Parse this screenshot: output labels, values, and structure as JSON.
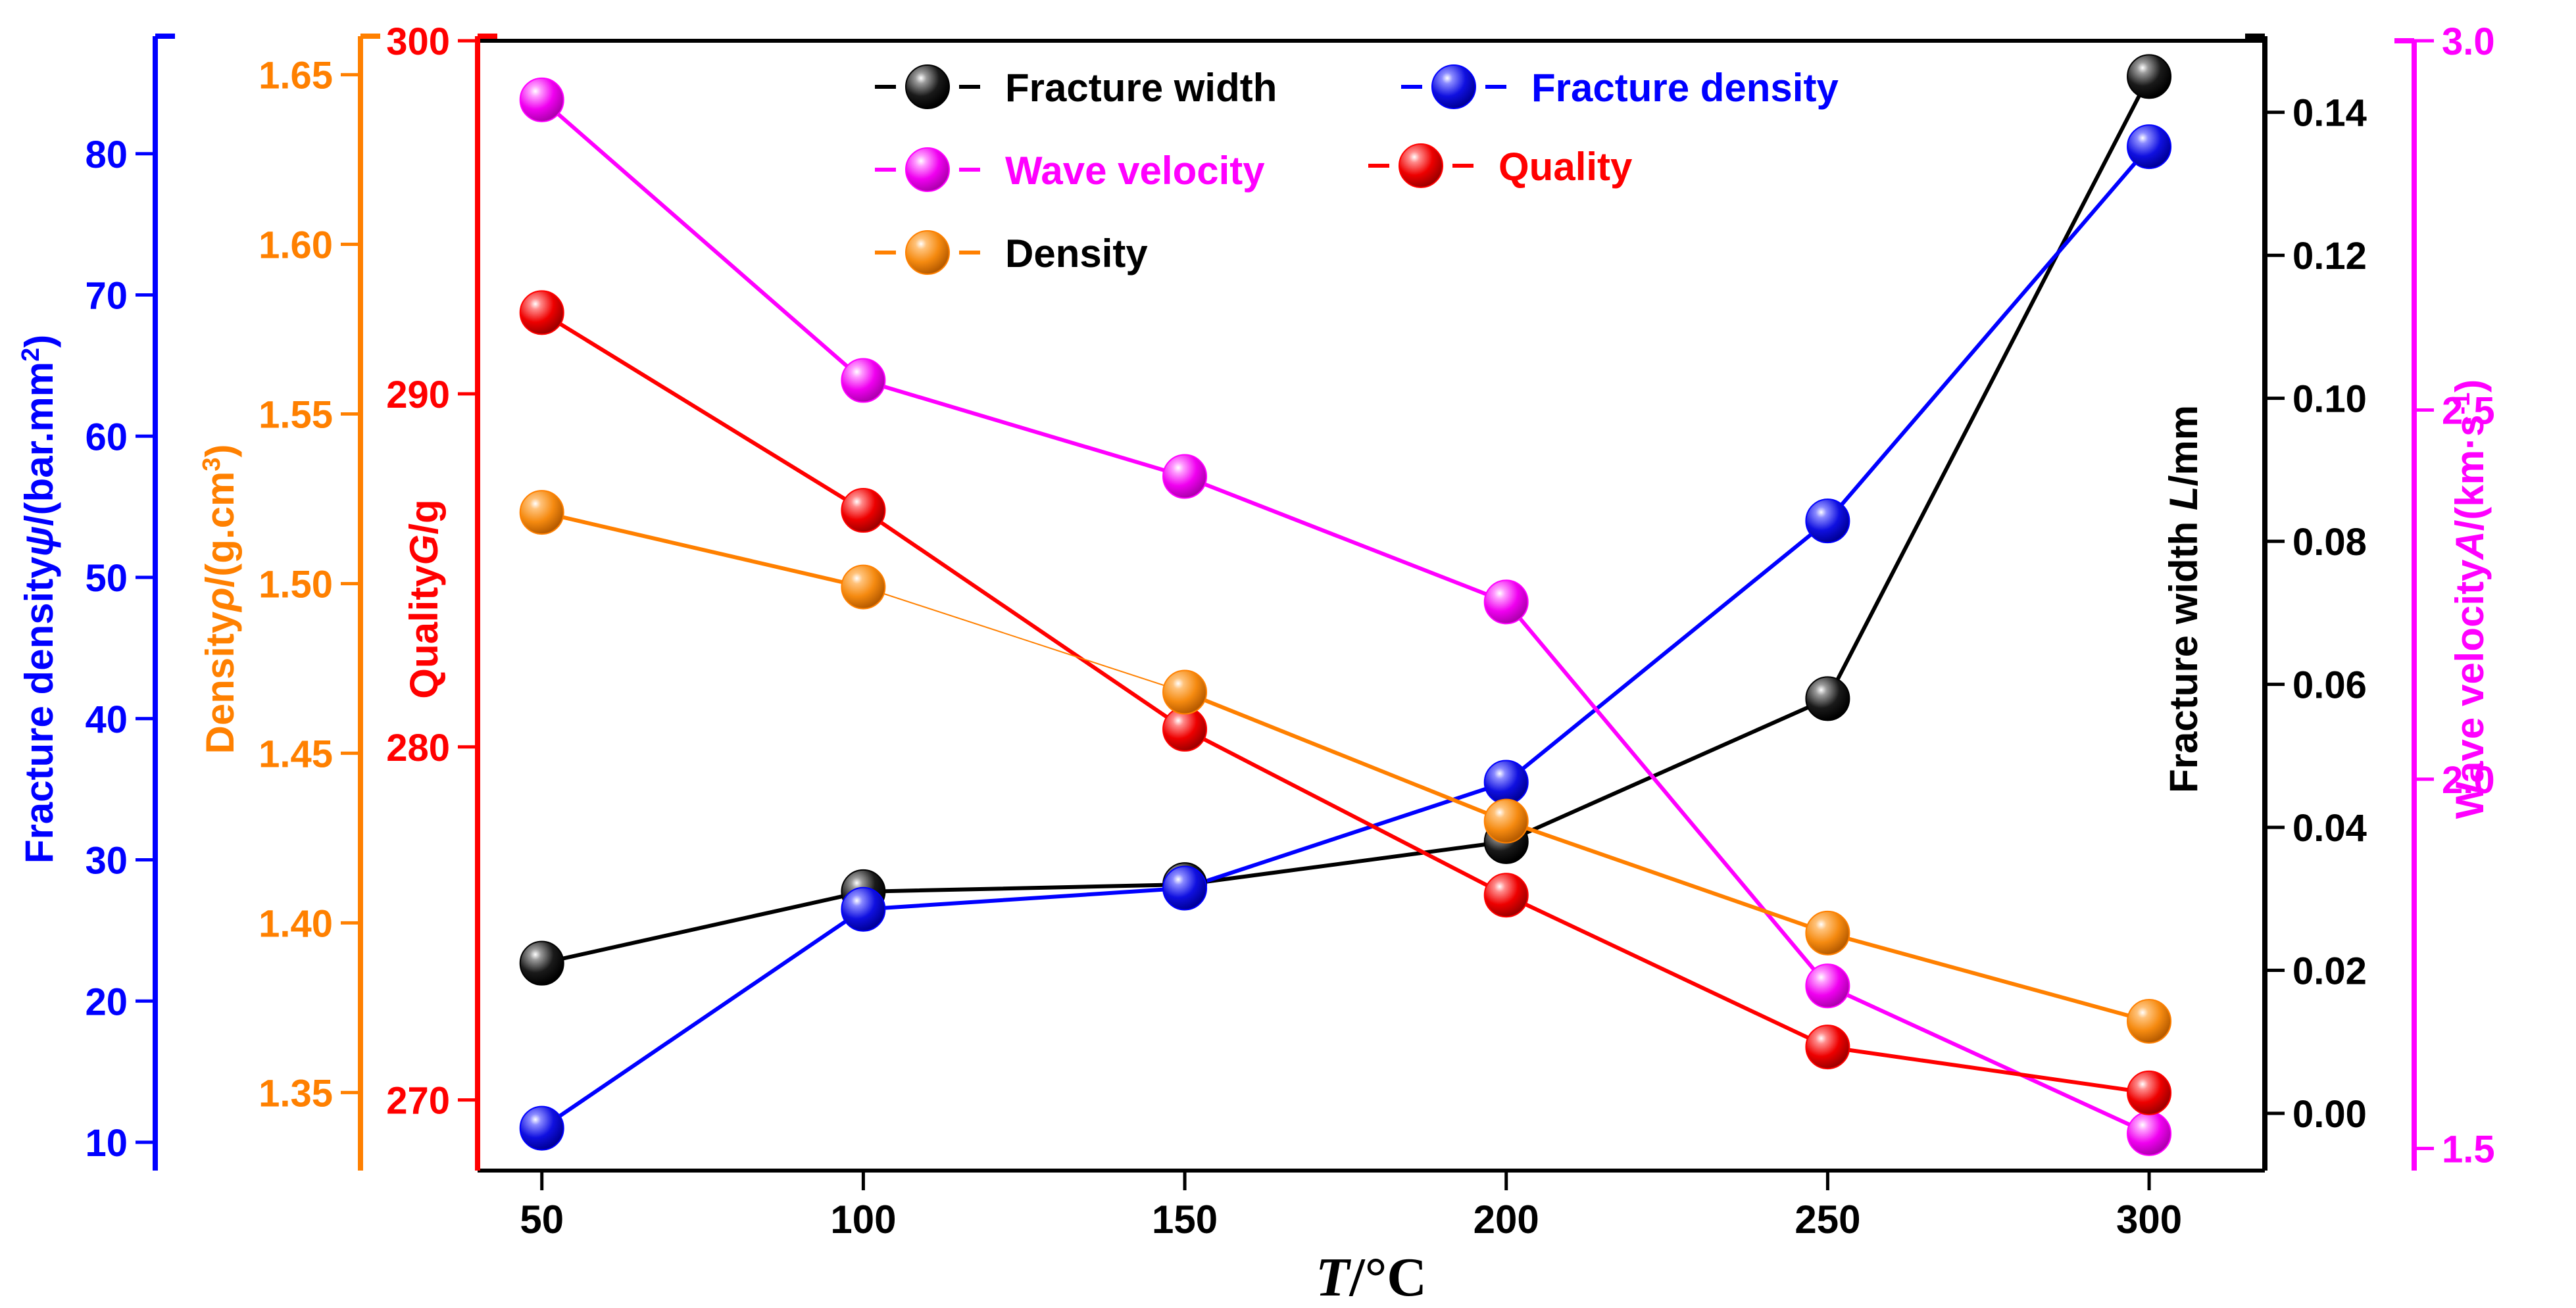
{
  "chart_data": {
    "type": "line",
    "x": [
      50,
      100,
      150,
      200,
      250,
      300
    ],
    "xlabel_italic": "T",
    "xlabel_rest": "/°C",
    "x_ticks": [
      "50",
      "100",
      "150",
      "200",
      "250",
      "300"
    ],
    "xlim": [
      40,
      318
    ],
    "series": [
      {
        "key": "fracture_width",
        "name": "Fracture width",
        "color": "#000000",
        "axis": "width",
        "values": [
          0.021,
          0.031,
          0.032,
          0.038,
          0.058,
          0.145
        ]
      },
      {
        "key": "fracture_density",
        "name": "Fracture density",
        "color": "#0000ff",
        "axis": "fdensity",
        "values": [
          11.0,
          26.5,
          28.0,
          35.5,
          54.0,
          80.5
        ]
      },
      {
        "key": "wave_velocity",
        "name": "Wave velocity",
        "color": "#ff00ff",
        "axis": "velocity",
        "values": [
          2.92,
          2.54,
          2.41,
          2.24,
          1.72,
          1.52
        ]
      },
      {
        "key": "quality",
        "name": "Quality",
        "color": "#ff0000",
        "axis": "quality",
        "values": [
          292.3,
          286.7,
          280.5,
          275.8,
          271.5,
          270.2
        ]
      },
      {
        "key": "density",
        "name": "Density",
        "color": "#ff8000",
        "axis": "rho",
        "values": [
          1.521,
          1.499,
          1.468,
          1.43,
          1.397,
          1.371
        ]
      }
    ],
    "axes": [
      {
        "key": "fdensity",
        "color": "#0000ff",
        "ylim": [
          8,
          88
        ],
        "ticks": [
          "10",
          "20",
          "30",
          "40",
          "50",
          "60",
          "70",
          "80"
        ],
        "label": "Fracture density",
        "label_italic": "ψ",
        "label_rest": "/(bar.mm",
        "label_sup": "2",
        "label_end": ")"
      },
      {
        "key": "rho",
        "color": "#ff8000",
        "ylim": [
          1.327,
          1.66
        ],
        "ticks": [
          "1.35",
          "1.40",
          "1.45",
          "1.50",
          "1.55",
          "1.60",
          "1.65"
        ],
        "label": "Density",
        "label_italic": "ρ",
        "label_rest": "/(g.cm",
        "label_sup": "3",
        "label_end": ")"
      },
      {
        "key": "quality",
        "color": "#ff0000",
        "ylim": [
          268,
          300
        ],
        "ticks": [
          "270",
          "280",
          "290",
          "300"
        ],
        "label": "Quality",
        "label_italic": "G",
        "label_rest": "/g",
        "label_sup": "",
        "label_end": ""
      },
      {
        "key": "width",
        "color": "#000000",
        "ylim": [
          -0.008,
          0.15
        ],
        "ticks": [
          "0.00",
          "0.02",
          "0.04",
          "0.06",
          "0.08",
          "0.10",
          "0.12",
          "0.14"
        ],
        "label": "Fracture width ",
        "label_italic": "L",
        "label_rest": "/mm",
        "label_sup": "",
        "label_end": ""
      },
      {
        "key": "velocity",
        "color": "#ff00ff",
        "ylim": [
          1.47,
          3.0
        ],
        "ticks": [
          "1.5",
          "2.0",
          "2.5",
          "3.0"
        ],
        "label": "Wave velocity",
        "label_italic": "A",
        "label_rest": "/(km·s",
        "label_sup": "-1",
        "label_end": ")"
      }
    ],
    "legend_placement": "top-center"
  }
}
